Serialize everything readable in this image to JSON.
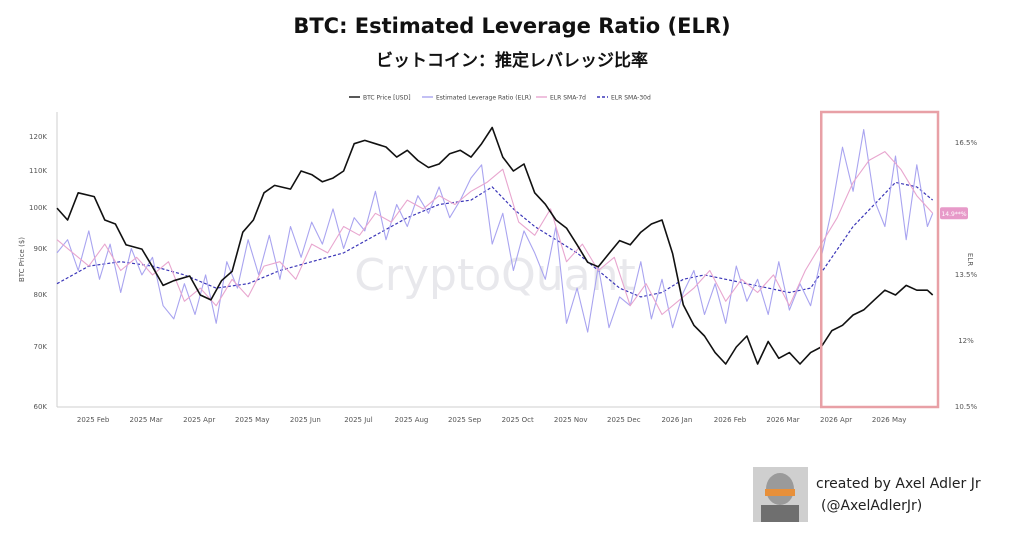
{
  "title": "BTC: Estimated Leverage Ratio (ELR)",
  "subtitle": "ビットコイン：推定レバレッジ比率",
  "watermark": "CryptoQuant",
  "credit": {
    "line1": "created by Axel Adler Jr",
    "line2": "(@AxelAdlerJr)"
  },
  "chart_data": {
    "type": "line",
    "legend": [
      {
        "name": "BTC Price [USD]",
        "color": "#111111",
        "style": "solid"
      },
      {
        "name": "Estimated Leverage Ratio (ELR)",
        "color": "#a9a4f0",
        "style": "solid"
      },
      {
        "name": "ELR SMA-7d",
        "color": "#e8a6cf",
        "style": "solid"
      },
      {
        "name": "ELR SMA-30d",
        "color": "#3b36b8",
        "style": "dashed"
      }
    ],
    "legend_position": "top-center",
    "yleft_label": "BTC Price ($)",
    "yleft_scale": "log",
    "yleft_ticks": [
      {
        "value": 60000,
        "label": "60K"
      },
      {
        "value": 70000,
        "label": "70K"
      },
      {
        "value": 80000,
        "label": "80K"
      },
      {
        "value": 90000,
        "label": "90K"
      },
      {
        "value": 100000,
        "label": "100K"
      },
      {
        "value": 110000,
        "label": "110K"
      },
      {
        "value": 120000,
        "label": "120K"
      }
    ],
    "yleft_range": [
      60000,
      128000
    ],
    "yright_label": "ELR",
    "yright_ticks": [
      {
        "value": 10.5,
        "label": "10.5%"
      },
      {
        "value": 12,
        "label": "12%"
      },
      {
        "value": 13.5,
        "label": "13.5%"
      },
      {
        "value": 16.5,
        "label": "16.5%"
      }
    ],
    "yright_range": [
      10.5,
      17.2
    ],
    "current_elr_label": "14.9**%",
    "x_ticks": [
      "2025 Feb",
      "2025 Mar",
      "2025 Apr",
      "2025 May",
      "2025 Jun",
      "2025 Jul",
      "2025 Aug",
      "2025 Sep",
      "2025 Oct",
      "2025 Nov",
      "2025 Dec",
      "2026 Jan",
      "2026 Feb",
      "2026 Mar",
      "2026 Apr",
      "2026 May"
    ],
    "x_range_months": [
      0,
      16.6
    ],
    "x_tick_months": [
      0.68,
      1.68,
      2.68,
      3.68,
      4.68,
      5.68,
      6.68,
      7.68,
      8.68,
      9.68,
      10.68,
      11.68,
      12.68,
      13.68,
      14.68,
      15.68
    ],
    "highlight": {
      "from_month": 14.4,
      "to_month": 16.6,
      "color": "#e8a0a6"
    },
    "series": [
      {
        "name": "BTC Price [USD]",
        "x": [
          0,
          0.2,
          0.4,
          0.7,
          0.9,
          1.1,
          1.3,
          1.6,
          1.8,
          2.0,
          2.2,
          2.5,
          2.7,
          2.9,
          3.1,
          3.3,
          3.5,
          3.7,
          3.9,
          4.1,
          4.4,
          4.6,
          4.8,
          5.0,
          5.2,
          5.4,
          5.6,
          5.8,
          6.0,
          6.2,
          6.4,
          6.6,
          6.8,
          7.0,
          7.2,
          7.4,
          7.6,
          7.8,
          8.0,
          8.2,
          8.4,
          8.6,
          8.8,
          9.0,
          9.2,
          9.4,
          9.6,
          9.8,
          10.0,
          10.2,
          10.4,
          10.6,
          10.8,
          11.0,
          11.2,
          11.4,
          11.6,
          11.8,
          12.0,
          12.2,
          12.4,
          12.6,
          12.8,
          13.0,
          13.2,
          13.4,
          13.6,
          13.8,
          14.0,
          14.2,
          14.4,
          14.6,
          14.8,
          15.0,
          15.2,
          15.4,
          15.6,
          15.8,
          16.0,
          16.2,
          16.4,
          16.5
        ],
        "y": [
          100000,
          97000,
          104000,
          103000,
          97000,
          96000,
          91000,
          90000,
          86000,
          82000,
          83000,
          84000,
          80000,
          79000,
          83000,
          85000,
          94000,
          97000,
          104000,
          106000,
          105000,
          110000,
          109000,
          107000,
          108000,
          110000,
          118000,
          119000,
          118000,
          117000,
          114000,
          116000,
          113000,
          111000,
          112000,
          115000,
          116000,
          114000,
          118000,
          123000,
          114000,
          110000,
          112000,
          104000,
          101000,
          97000,
          95000,
          91000,
          87000,
          86000,
          89000,
          92000,
          91000,
          94000,
          96000,
          97000,
          89000,
          78000,
          74000,
          72000,
          69000,
          67000,
          70000,
          72000,
          67000,
          71000,
          68000,
          69000,
          67000,
          69000,
          70000,
          73000,
          74000,
          76000,
          77000,
          79000,
          81000,
          80000,
          82000,
          81000,
          81000,
          80000
        ]
      },
      {
        "name": "ELR SMA-30d",
        "x": [
          0,
          0.6,
          1.2,
          1.8,
          2.4,
          3.0,
          3.6,
          4.2,
          4.8,
          5.4,
          6.0,
          6.6,
          7.2,
          7.8,
          8.2,
          8.6,
          9.0,
          9.4,
          9.8,
          10.2,
          10.6,
          11.0,
          11.4,
          11.8,
          12.2,
          12.6,
          13.0,
          13.4,
          13.8,
          14.2,
          14.6,
          15.0,
          15.4,
          15.8,
          16.2,
          16.5
        ],
        "y": [
          13.3,
          13.7,
          13.8,
          13.7,
          13.5,
          13.2,
          13.3,
          13.6,
          13.8,
          14.0,
          14.4,
          14.8,
          15.1,
          15.2,
          15.5,
          15.0,
          14.6,
          14.3,
          14.0,
          13.6,
          13.2,
          13.0,
          13.1,
          13.4,
          13.5,
          13.4,
          13.3,
          13.2,
          13.1,
          13.2,
          13.9,
          14.6,
          15.1,
          15.6,
          15.5,
          15.2
        ]
      },
      {
        "name": "ELR SMA-7d",
        "x": [
          0,
          0.3,
          0.6,
          0.9,
          1.2,
          1.5,
          1.8,
          2.1,
          2.4,
          2.7,
          3.0,
          3.3,
          3.6,
          3.9,
          4.2,
          4.5,
          4.8,
          5.1,
          5.4,
          5.7,
          6.0,
          6.3,
          6.6,
          6.9,
          7.2,
          7.5,
          7.8,
          8.1,
          8.4,
          8.7,
          9.0,
          9.3,
          9.6,
          9.9,
          10.2,
          10.5,
          10.8,
          11.1,
          11.4,
          11.7,
          12.0,
          12.3,
          12.6,
          12.9,
          13.2,
          13.5,
          13.8,
          14.1,
          14.4,
          14.7,
          15.0,
          15.3,
          15.6,
          15.9,
          16.2,
          16.5
        ],
        "y": [
          14.3,
          14.0,
          13.7,
          14.2,
          13.6,
          13.9,
          13.5,
          13.8,
          12.9,
          13.2,
          12.8,
          13.4,
          13.0,
          13.7,
          13.8,
          13.4,
          14.2,
          14.0,
          14.6,
          14.4,
          14.9,
          14.7,
          15.2,
          15.0,
          15.3,
          15.1,
          15.4,
          15.6,
          15.9,
          14.7,
          14.4,
          15.0,
          13.8,
          14.2,
          13.6,
          13.9,
          12.8,
          13.3,
          12.6,
          12.9,
          13.2,
          13.6,
          12.9,
          13.4,
          13.1,
          13.5,
          12.8,
          13.6,
          14.2,
          14.8,
          15.6,
          16.1,
          16.3,
          15.9,
          15.3,
          14.9
        ]
      },
      {
        "name": "Estimated Leverage Ratio (ELR)",
        "x": [
          0,
          0.2,
          0.4,
          0.6,
          0.8,
          1.0,
          1.2,
          1.4,
          1.6,
          1.8,
          2.0,
          2.2,
          2.4,
          2.6,
          2.8,
          3.0,
          3.2,
          3.4,
          3.6,
          3.8,
          4.0,
          4.2,
          4.4,
          4.6,
          4.8,
          5.0,
          5.2,
          5.4,
          5.6,
          5.8,
          6.0,
          6.2,
          6.4,
          6.6,
          6.8,
          7.0,
          7.2,
          7.4,
          7.6,
          7.8,
          8.0,
          8.2,
          8.4,
          8.6,
          8.8,
          9.0,
          9.2,
          9.4,
          9.6,
          9.8,
          10.0,
          10.2,
          10.4,
          10.6,
          10.8,
          11.0,
          11.2,
          11.4,
          11.6,
          11.8,
          12.0,
          12.2,
          12.4,
          12.6,
          12.8,
          13.0,
          13.2,
          13.4,
          13.6,
          13.8,
          14.0,
          14.2,
          14.4,
          14.6,
          14.8,
          15.0,
          15.2,
          15.4,
          15.6,
          15.8,
          16.0,
          16.2,
          16.4,
          16.5
        ],
        "y": [
          14.0,
          14.3,
          13.6,
          14.5,
          13.4,
          14.2,
          13.1,
          14.1,
          13.5,
          13.9,
          12.8,
          12.5,
          13.3,
          12.6,
          13.5,
          12.4,
          13.8,
          13.2,
          14.3,
          13.5,
          14.4,
          13.4,
          14.6,
          13.9,
          14.7,
          14.2,
          15.0,
          14.1,
          14.8,
          14.5,
          15.4,
          14.3,
          15.1,
          14.6,
          15.3,
          14.9,
          15.5,
          14.8,
          15.2,
          15.7,
          16.0,
          14.2,
          14.9,
          13.6,
          14.5,
          14.0,
          13.4,
          14.6,
          12.4,
          13.2,
          12.2,
          13.7,
          12.3,
          13.0,
          12.8,
          13.8,
          12.5,
          13.4,
          12.3,
          13.1,
          13.6,
          12.6,
          13.3,
          12.4,
          13.7,
          12.9,
          13.4,
          12.6,
          13.8,
          12.7,
          13.3,
          12.8,
          13.9,
          15.0,
          16.4,
          15.4,
          16.8,
          15.2,
          14.6,
          16.2,
          14.3,
          16.0,
          14.6,
          14.9
        ]
      }
    ]
  }
}
